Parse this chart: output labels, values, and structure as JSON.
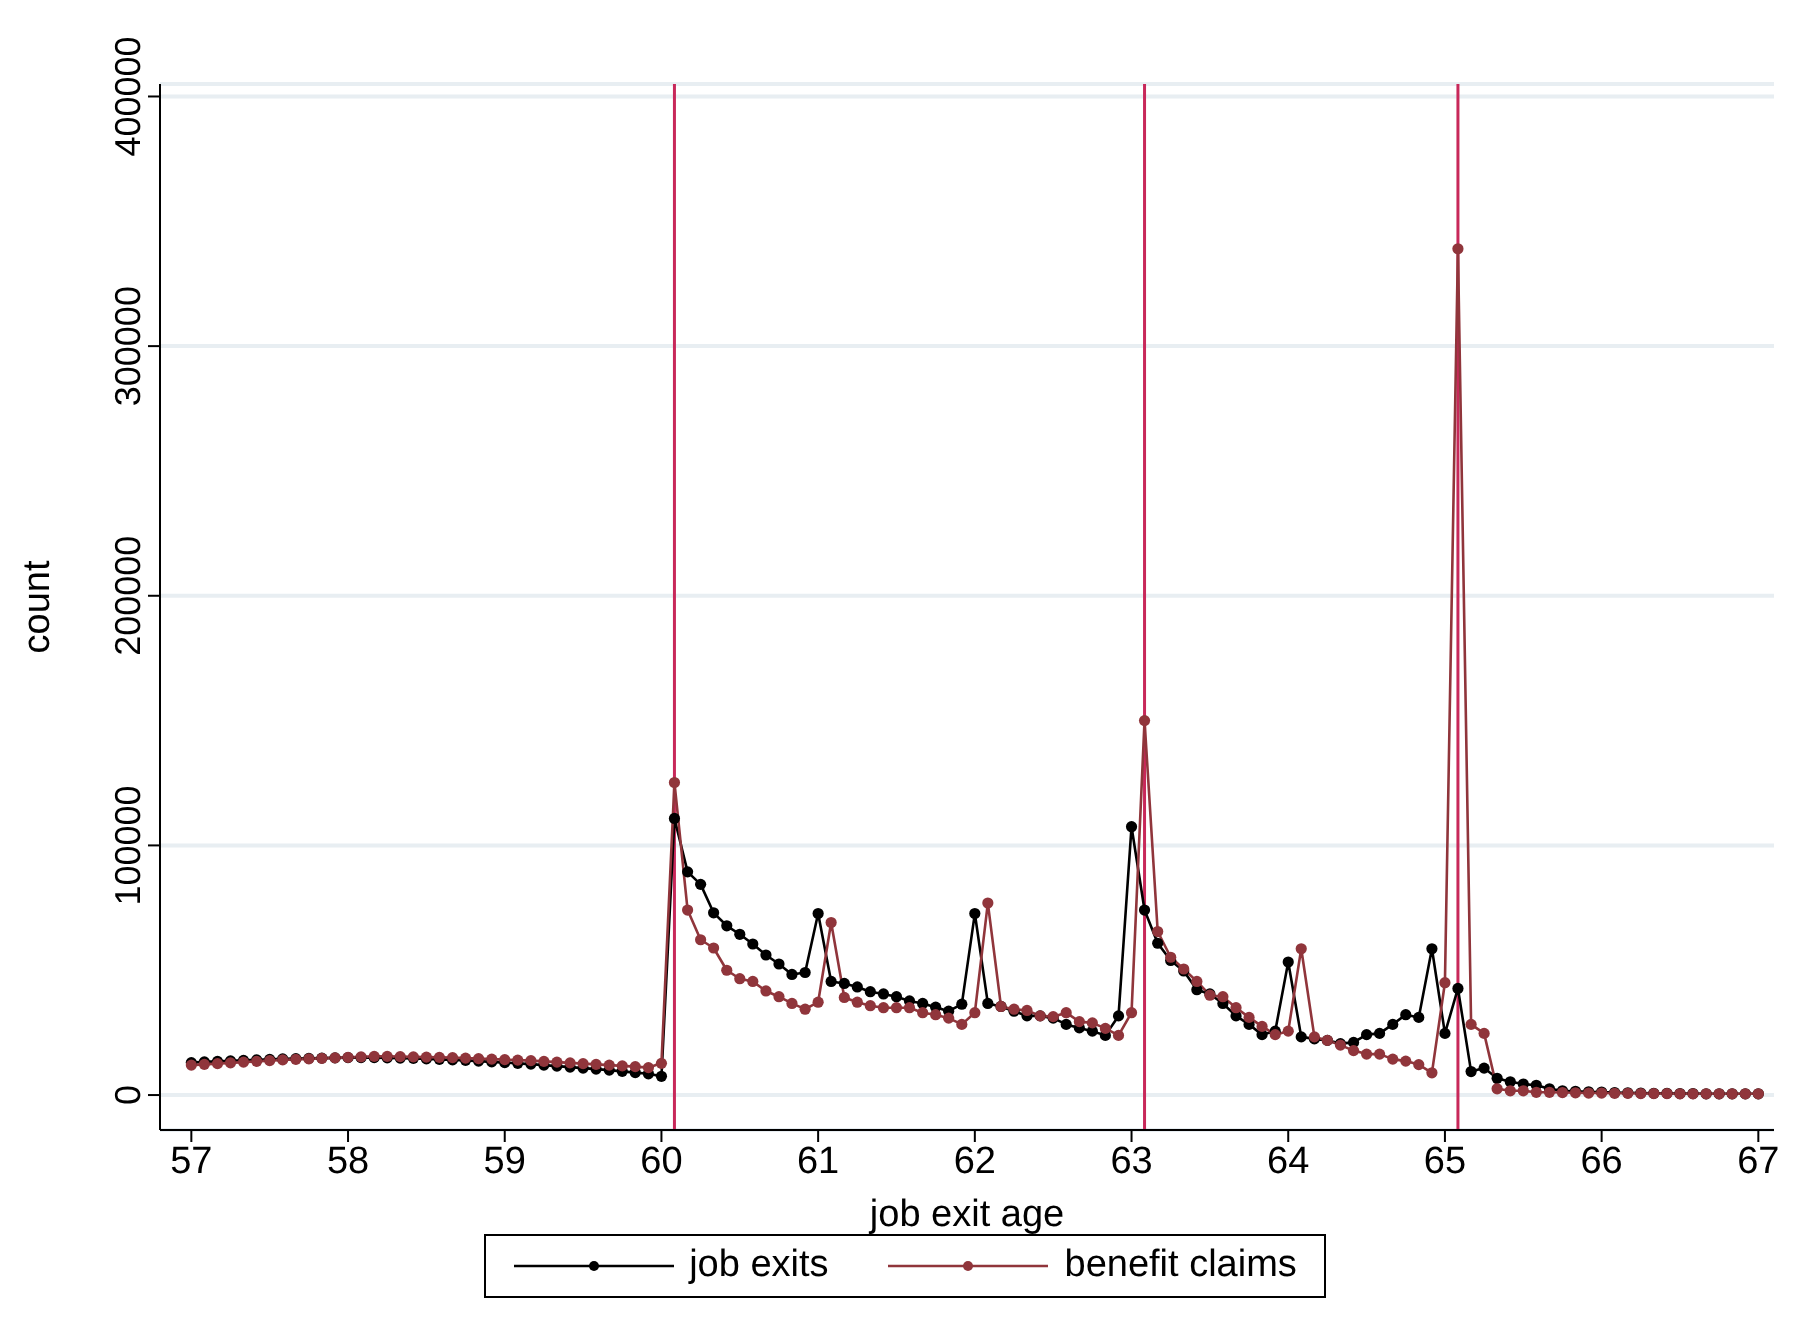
{
  "chart_data": {
    "type": "line",
    "xlabel": "job exit age",
    "ylabel": "count",
    "x": [
      57,
      57.083,
      57.167,
      57.25,
      57.333,
      57.417,
      57.5,
      57.583,
      57.667,
      57.75,
      57.833,
      57.917,
      58,
      58.083,
      58.167,
      58.25,
      58.333,
      58.417,
      58.5,
      58.583,
      58.667,
      58.75,
      58.833,
      58.917,
      59,
      59.083,
      59.167,
      59.25,
      59.333,
      59.417,
      59.5,
      59.583,
      59.667,
      59.75,
      59.833,
      59.917,
      60,
      60.083,
      60.167,
      60.25,
      60.333,
      60.417,
      60.5,
      60.583,
      60.667,
      60.75,
      60.833,
      60.917,
      61,
      61.083,
      61.167,
      61.25,
      61.333,
      61.417,
      61.5,
      61.583,
      61.667,
      61.75,
      61.833,
      61.917,
      62,
      62.083,
      62.167,
      62.25,
      62.333,
      62.417,
      62.5,
      62.583,
      62.667,
      62.75,
      62.833,
      62.917,
      63,
      63.083,
      63.167,
      63.25,
      63.333,
      63.417,
      63.5,
      63.583,
      63.667,
      63.75,
      63.833,
      63.917,
      64,
      64.083,
      64.167,
      64.25,
      64.333,
      64.417,
      64.5,
      64.583,
      64.667,
      64.75,
      64.833,
      64.917,
      65,
      65.083,
      65.167,
      65.25,
      65.333,
      65.417,
      65.5,
      65.583,
      65.667,
      65.75,
      65.833,
      65.917,
      66,
      66.083,
      66.167,
      66.25,
      66.333,
      66.417,
      66.5,
      66.583,
      66.667,
      66.75,
      66.833,
      66.917,
      67
    ],
    "series": [
      {
        "name": "job exits",
        "color": "#000000",
        "values": [
          13000,
          13300,
          13500,
          13700,
          13900,
          14100,
          14300,
          14500,
          14600,
          14700,
          14800,
          14900,
          15000,
          15000,
          15000,
          14900,
          14800,
          14700,
          14500,
          14300,
          14100,
          13900,
          13600,
          13300,
          13000,
          12700,
          12400,
          12000,
          11600,
          11200,
          10800,
          10400,
          10000,
          9500,
          9000,
          8500,
          7500,
          110800,
          89400,
          84400,
          73000,
          67800,
          64400,
          60500,
          56100,
          52500,
          48300,
          49100,
          72700,
          45500,
          44700,
          43300,
          41400,
          40500,
          39400,
          37700,
          36700,
          35200,
          33600,
          36400,
          72700,
          36700,
          35500,
          33600,
          31700,
          31700,
          30800,
          28300,
          26900,
          25600,
          23900,
          31700,
          107500,
          74100,
          60800,
          53900,
          49700,
          42200,
          40500,
          36700,
          31700,
          28300,
          24200,
          25600,
          53300,
          23300,
          22500,
          21900,
          20600,
          21100,
          24200,
          24700,
          28300,
          32200,
          31100,
          58600,
          24700,
          42700,
          9400,
          10800,
          6700,
          5300,
          4400,
          3900,
          2500,
          1700,
          1500,
          1300,
          1200,
          1000,
          900,
          800,
          700,
          700,
          600,
          600,
          500,
          500,
          500,
          500,
          500
        ]
      },
      {
        "name": "benefit claims",
        "color": "#90353b",
        "values": [
          12000,
          12300,
          12600,
          12900,
          13200,
          13500,
          13800,
          14100,
          14300,
          14500,
          14700,
          14900,
          15100,
          15300,
          15500,
          15500,
          15400,
          15300,
          15200,
          15100,
          15000,
          14800,
          14600,
          14400,
          14200,
          14000,
          13800,
          13500,
          13200,
          12900,
          12600,
          12300,
          12000,
          11700,
          11400,
          11000,
          12700,
          125200,
          74100,
          62200,
          58900,
          50000,
          46600,
          45500,
          41700,
          39400,
          36700,
          34400,
          37200,
          69100,
          39100,
          37200,
          35800,
          35000,
          35000,
          35000,
          33000,
          32200,
          30800,
          28300,
          33000,
          76900,
          35500,
          34400,
          33900,
          31700,
          31400,
          33000,
          29400,
          28900,
          26700,
          23900,
          33000,
          150000,
          65500,
          55200,
          50500,
          45500,
          40000,
          39400,
          35000,
          31100,
          27500,
          24200,
          25600,
          58600,
          23300,
          21900,
          20000,
          17800,
          16400,
          16400,
          14400,
          13600,
          12200,
          8900,
          45000,
          339000,
          28300,
          24700,
          2500,
          1700,
          1700,
          1100,
          1100,
          1000,
          900,
          800,
          800,
          700,
          700,
          600,
          600,
          600,
          500,
          500,
          500,
          500,
          500,
          500,
          500
        ]
      }
    ],
    "xlim": [
      56.8,
      67.1
    ],
    "xticks": [
      57,
      58,
      59,
      60,
      61,
      62,
      63,
      64,
      65,
      66,
      67
    ],
    "ylim": [
      -14000,
      405000
    ],
    "yticks": [
      0,
      100000,
      200000,
      300000,
      400000
    ],
    "ref_lines": [
      {
        "axis": "x",
        "value": 60.083,
        "color": "#c8285a"
      },
      {
        "axis": "x",
        "value": 63.083,
        "color": "#c8285a"
      },
      {
        "axis": "x",
        "value": 65.083,
        "color": "#c8285a"
      }
    ],
    "grid": "y",
    "legend": "bottom",
    "marker": "circle",
    "line_style": "solid"
  }
}
